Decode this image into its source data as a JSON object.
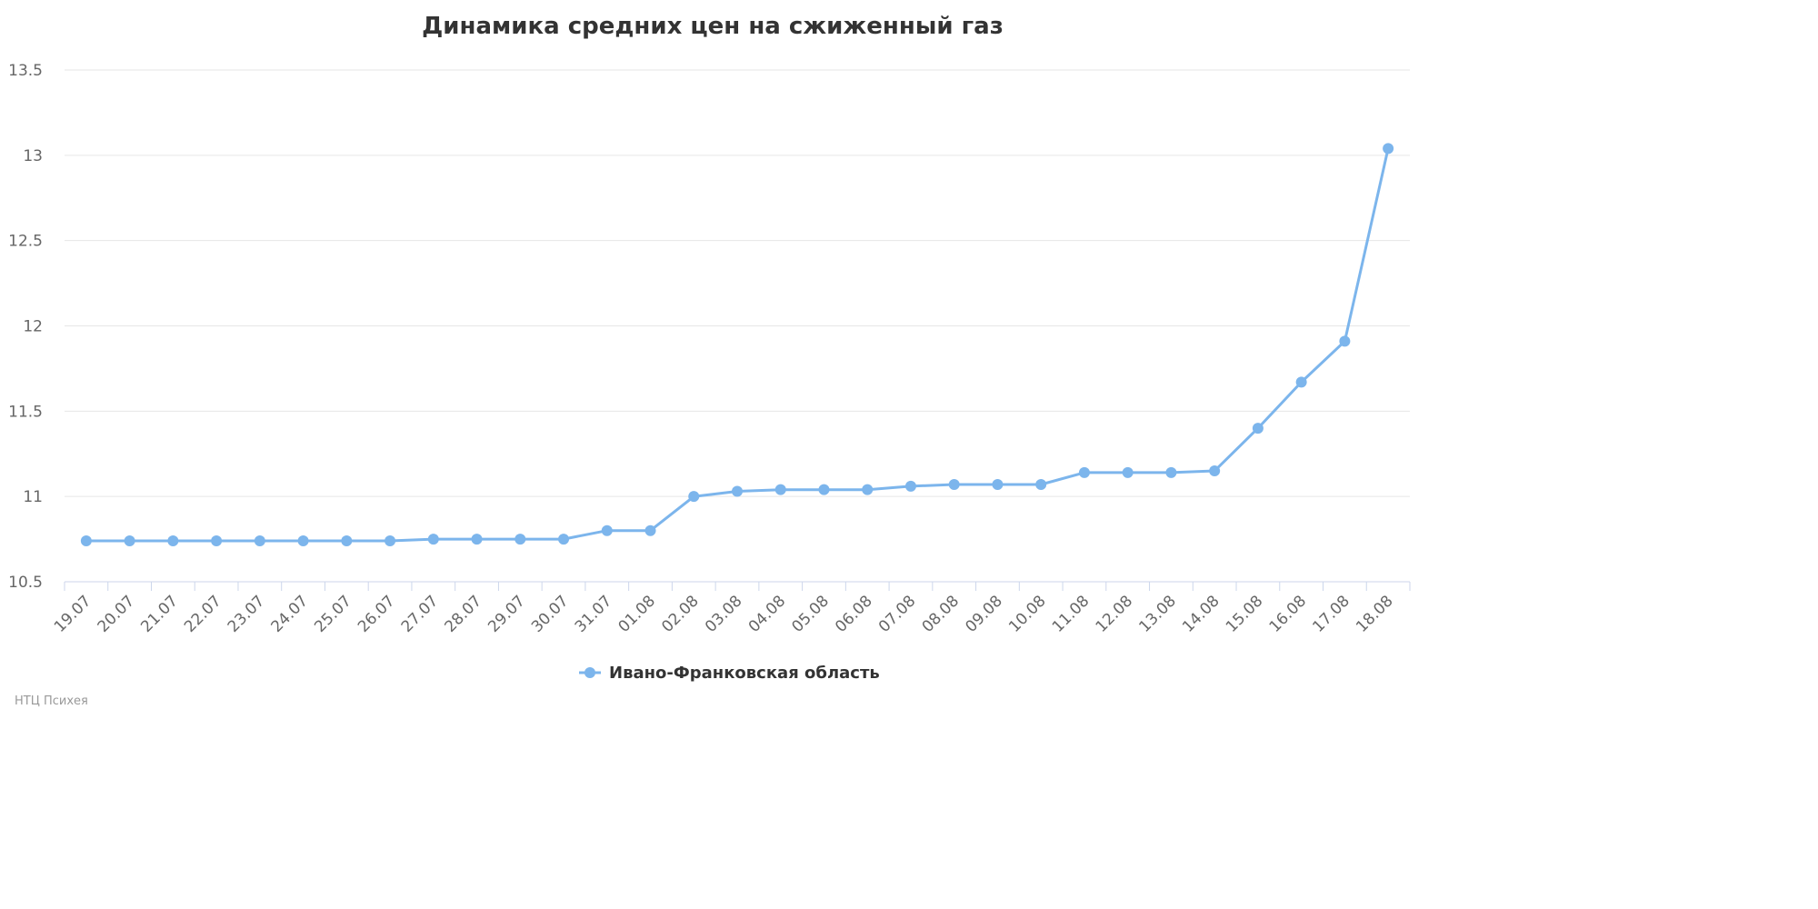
{
  "chart_data": {
    "type": "line",
    "title": "Динамика средних цен на сжиженный газ",
    "categories": [
      "19.07",
      "20.07",
      "21.07",
      "22.07",
      "23.07",
      "24.07",
      "25.07",
      "26.07",
      "27.07",
      "28.07",
      "29.07",
      "30.07",
      "31.07",
      "01.08",
      "02.08",
      "03.08",
      "04.08",
      "05.08",
      "06.08",
      "07.08",
      "08.08",
      "09.08",
      "10.08",
      "11.08",
      "12.08",
      "13.08",
      "14.08",
      "15.08",
      "16.08",
      "17.08",
      "18.08"
    ],
    "series": [
      {
        "name": "Ивано-Франковская область",
        "color": "#7cb5ec",
        "values": [
          10.74,
          10.74,
          10.74,
          10.74,
          10.74,
          10.74,
          10.74,
          10.74,
          10.75,
          10.75,
          10.75,
          10.75,
          10.8,
          10.8,
          11.0,
          11.03,
          11.04,
          11.04,
          11.04,
          11.06,
          11.07,
          11.07,
          11.07,
          11.14,
          11.14,
          11.14,
          11.15,
          11.4,
          11.67,
          11.91,
          13.04
        ]
      }
    ],
    "ylim": [
      10.5,
      13.5
    ],
    "yticks": [
      "10.5",
      "11",
      "11.5",
      "12",
      "12.5",
      "13",
      "13.5"
    ],
    "grid": true,
    "legend": "bottom-center"
  },
  "credit": "НТЦ Психея"
}
